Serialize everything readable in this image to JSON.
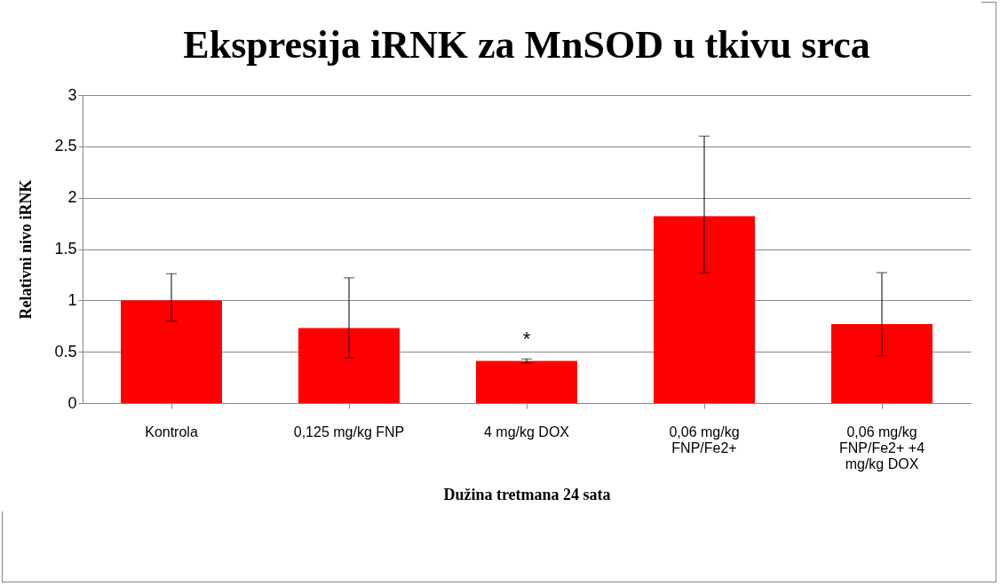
{
  "chart_data": {
    "type": "bar",
    "title": "Ekspresija iRNK za MnSOD u tkivu srca",
    "xlabel": "Dužina tretmana 24 sata",
    "ylabel": "Relativni nivo iRNK",
    "categories": [
      "Kontrola",
      "0,125 mg/kg FNP",
      "4 mg/kg DOX",
      "0,06 mg/kg FNP/Fe2+",
      "0,06 mg/kg FNP/Fe2+ +4 mg/kg DOX"
    ],
    "values": [
      1.0,
      0.73,
      0.41,
      1.82,
      0.77
    ],
    "color": "#ff0000",
    "errors": [
      [
        0.8,
        1.26
      ],
      [
        0.44,
        1.22
      ],
      [
        0.39,
        0.43
      ],
      [
        1.27,
        2.6
      ],
      [
        0.46,
        1.27
      ]
    ],
    "ylim": [
      0,
      3
    ],
    "yticks": [
      0,
      0.5,
      1,
      1.5,
      2,
      2.5,
      3
    ],
    "grid": "y",
    "annotations": [
      {
        "text": "*",
        "x": "4 mg/kg DOX",
        "y": 0.43
      }
    ]
  }
}
